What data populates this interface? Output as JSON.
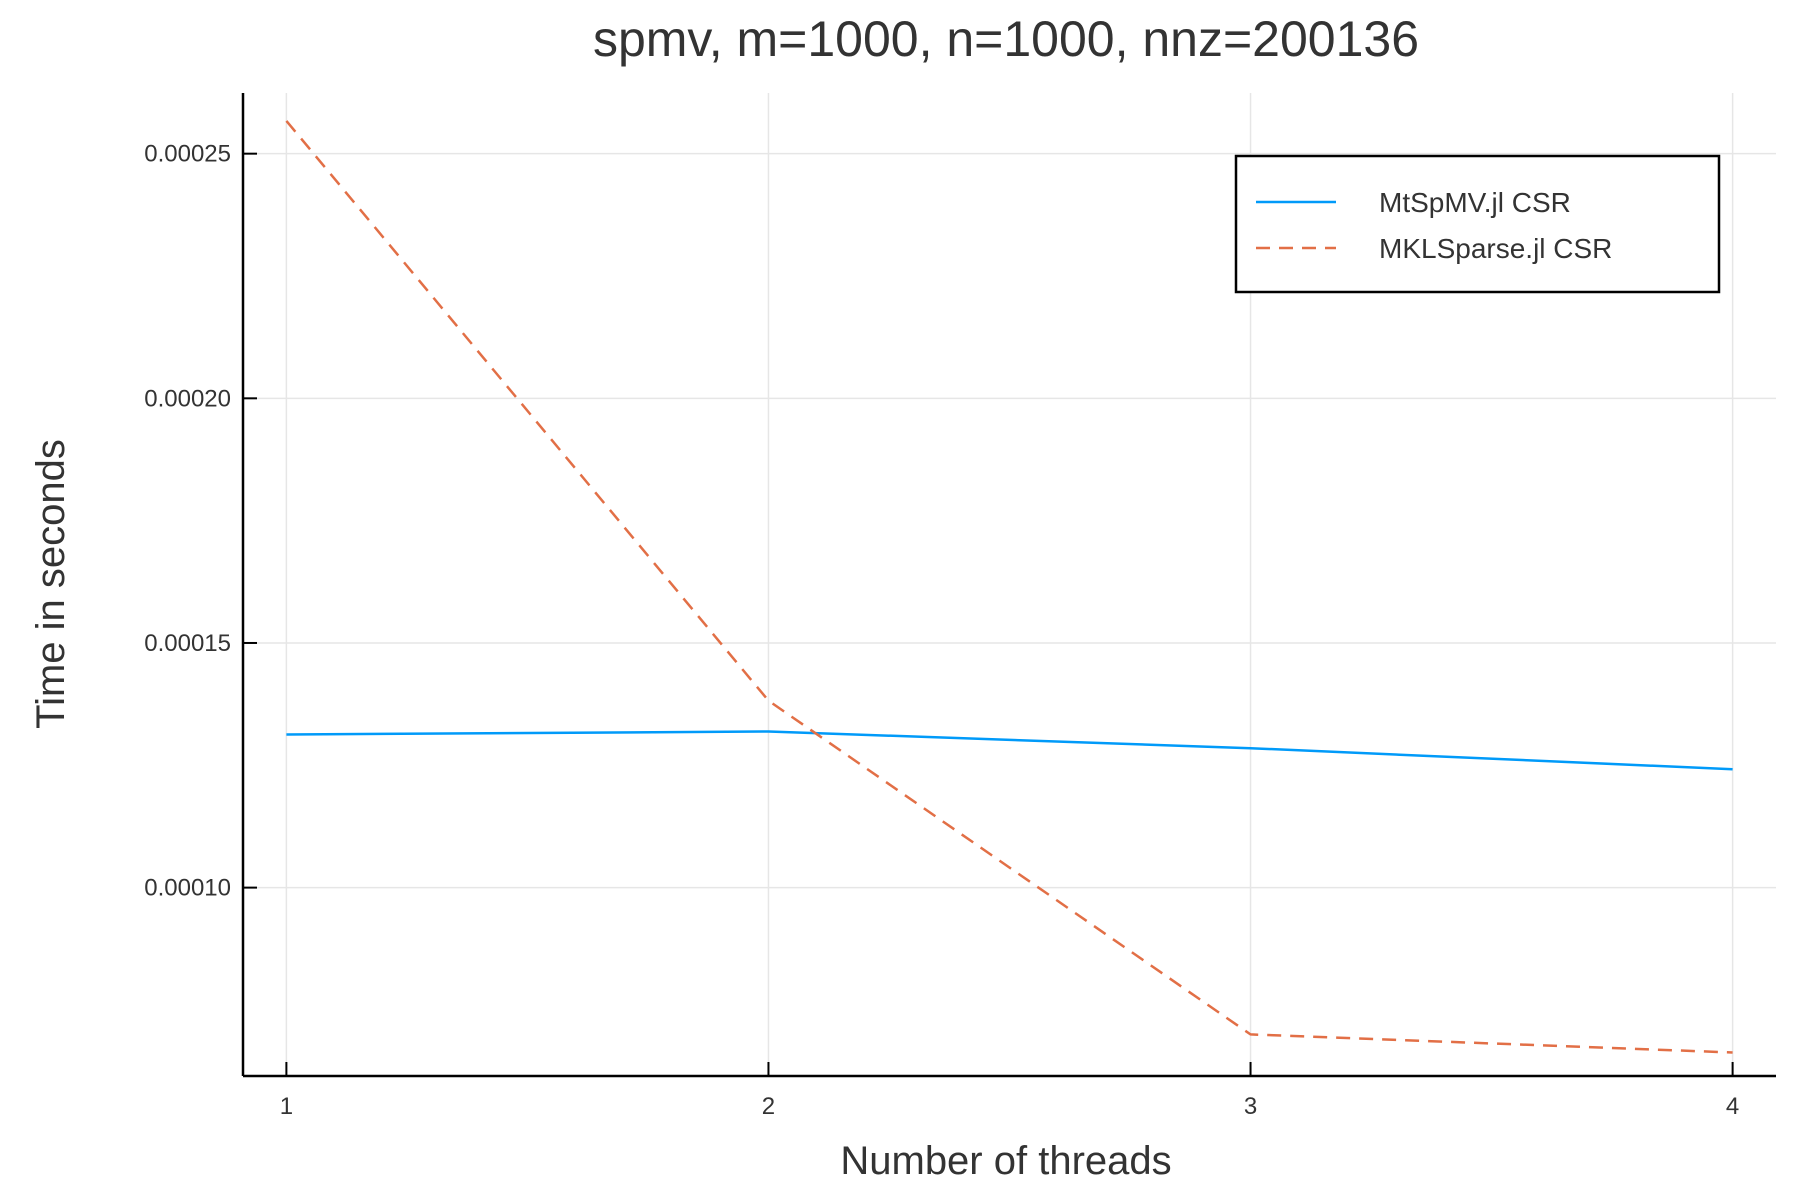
{
  "chart_data": {
    "type": "line",
    "title": "spmv, m=1000, n=1000, nnz=200136",
    "xlabel": "Number of threads",
    "ylabel": "Time in seconds",
    "x": [
      1,
      2,
      3,
      4
    ],
    "xticks": [
      "1",
      "2",
      "3",
      "4"
    ],
    "xlim": [
      0.91,
      4.09
    ],
    "ylim": [
      6.15e-05,
      0.0002624
    ],
    "yticks": [
      {
        "value": 0.0001,
        "label": "0.00010"
      },
      {
        "value": 0.00015,
        "label": "0.00015"
      },
      {
        "value": 0.0002,
        "label": "0.00020"
      },
      {
        "value": 0.00025,
        "label": "0.00025"
      }
    ],
    "grid": true,
    "legend_position": "top-right",
    "series": [
      {
        "name": "MtSpMV.jl CSR",
        "values": [
          0.0001313,
          0.0001319,
          0.0001285,
          0.0001242
        ],
        "color": "#009af9",
        "style": "solid"
      },
      {
        "name": "MKLSparse.jl CSR",
        "values": [
          0.0002567,
          0.0001382,
          7e-05,
          6.63e-05
        ],
        "color": "#e26f46",
        "style": "dashed"
      }
    ]
  }
}
